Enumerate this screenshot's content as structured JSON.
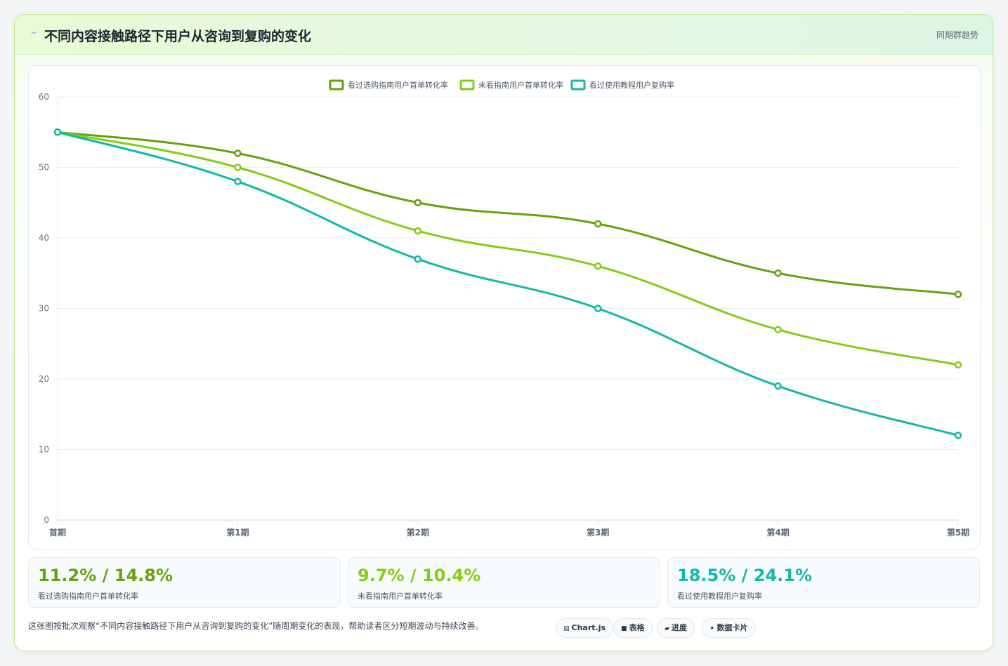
{
  "header": {
    "icon": "sparkle-icon",
    "title": "不同内容接触路径下用户从咨询到复购的变化",
    "right_label": "同期群趋势"
  },
  "chart_data": {
    "type": "line",
    "title": "",
    "xlabel": "",
    "ylabel": "",
    "categories": [
      "首期",
      "第1期",
      "第2期",
      "第3期",
      "第4期",
      "第5期"
    ],
    "ylim": [
      0,
      60
    ],
    "yticks": [
      0,
      10,
      20,
      30,
      40,
      50,
      60
    ],
    "grid": true,
    "legend_position": "top-center",
    "series": [
      {
        "name": "看过选购指南用户首单转化率",
        "color": "#65a30d",
        "values": [
          55,
          52,
          45,
          42,
          35,
          32
        ]
      },
      {
        "name": "未看指南用户首单转化率",
        "color": "#84cc16",
        "values": [
          55,
          50,
          41,
          36,
          27,
          22
        ]
      },
      {
        "name": "看过使用教程用户复购率",
        "color": "#14b8a6",
        "values": [
          55,
          48,
          37,
          30,
          19,
          12
        ]
      }
    ]
  },
  "stats": [
    {
      "value": "11.2% / 14.8%",
      "label": "看过选购指南用户首单转化率",
      "color": "#65a30d"
    },
    {
      "value": "9.7% / 10.4%",
      "label": "未看指南用户首单转化率",
      "color": "#84cc16"
    },
    {
      "value": "18.5% / 24.1%",
      "label": "看过使用教程用户复购率",
      "color": "#14b8a6"
    }
  ],
  "footer": {
    "note": "这张图按批次观察“不同内容接触路径下用户从咨询到复购的变化”随周期变化的表现，帮助读者区分短期波动与持续改善。",
    "chips": [
      {
        "icon": "chart-icon",
        "label": "Chart.js"
      },
      {
        "icon": "table-icon",
        "label": "表格"
      },
      {
        "icon": "progress-icon",
        "label": "进度"
      },
      {
        "icon": "card-icon",
        "label": "数据卡片"
      }
    ]
  }
}
